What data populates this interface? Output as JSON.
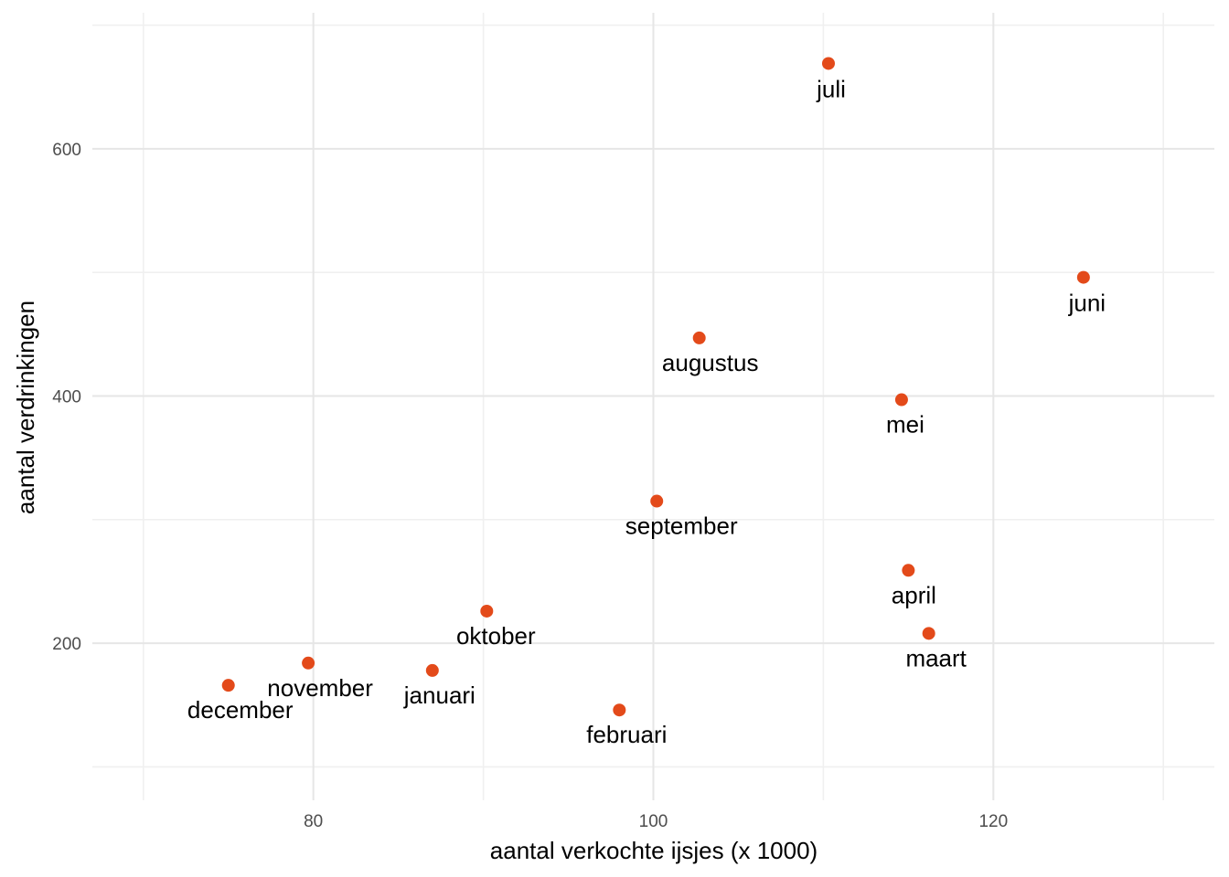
{
  "chart_data": {
    "type": "scatter",
    "title": "",
    "xlabel": "aantal verkochte ijsjes (x 1000)",
    "ylabel": "aantal verdrinkingen",
    "xlim": [
      67,
      133
    ],
    "ylim": [
      73,
      710
    ],
    "x_major_ticks": [
      80,
      100,
      120
    ],
    "x_minor_ticks": [
      70,
      90,
      110,
      130
    ],
    "y_major_ticks": [
      200,
      400,
      600
    ],
    "y_minor_ticks": [
      100,
      300,
      500,
      700
    ],
    "grid": true,
    "legend": "none",
    "point_color": "#e34a1a",
    "points": [
      {
        "label": "januari",
        "x": 87.0,
        "y": 178
      },
      {
        "label": "februari",
        "x": 98.0,
        "y": 146
      },
      {
        "label": "maart",
        "x": 116.2,
        "y": 208
      },
      {
        "label": "april",
        "x": 115.0,
        "y": 259
      },
      {
        "label": "mei",
        "x": 114.6,
        "y": 397
      },
      {
        "label": "juni",
        "x": 125.3,
        "y": 496
      },
      {
        "label": "juli",
        "x": 110.3,
        "y": 669
      },
      {
        "label": "augustus",
        "x": 102.7,
        "y": 447
      },
      {
        "label": "september",
        "x": 100.2,
        "y": 315
      },
      {
        "label": "oktober",
        "x": 90.2,
        "y": 226
      },
      {
        "label": "november",
        "x": 79.7,
        "y": 184
      },
      {
        "label": "december",
        "x": 75.0,
        "y": 166
      }
    ]
  }
}
